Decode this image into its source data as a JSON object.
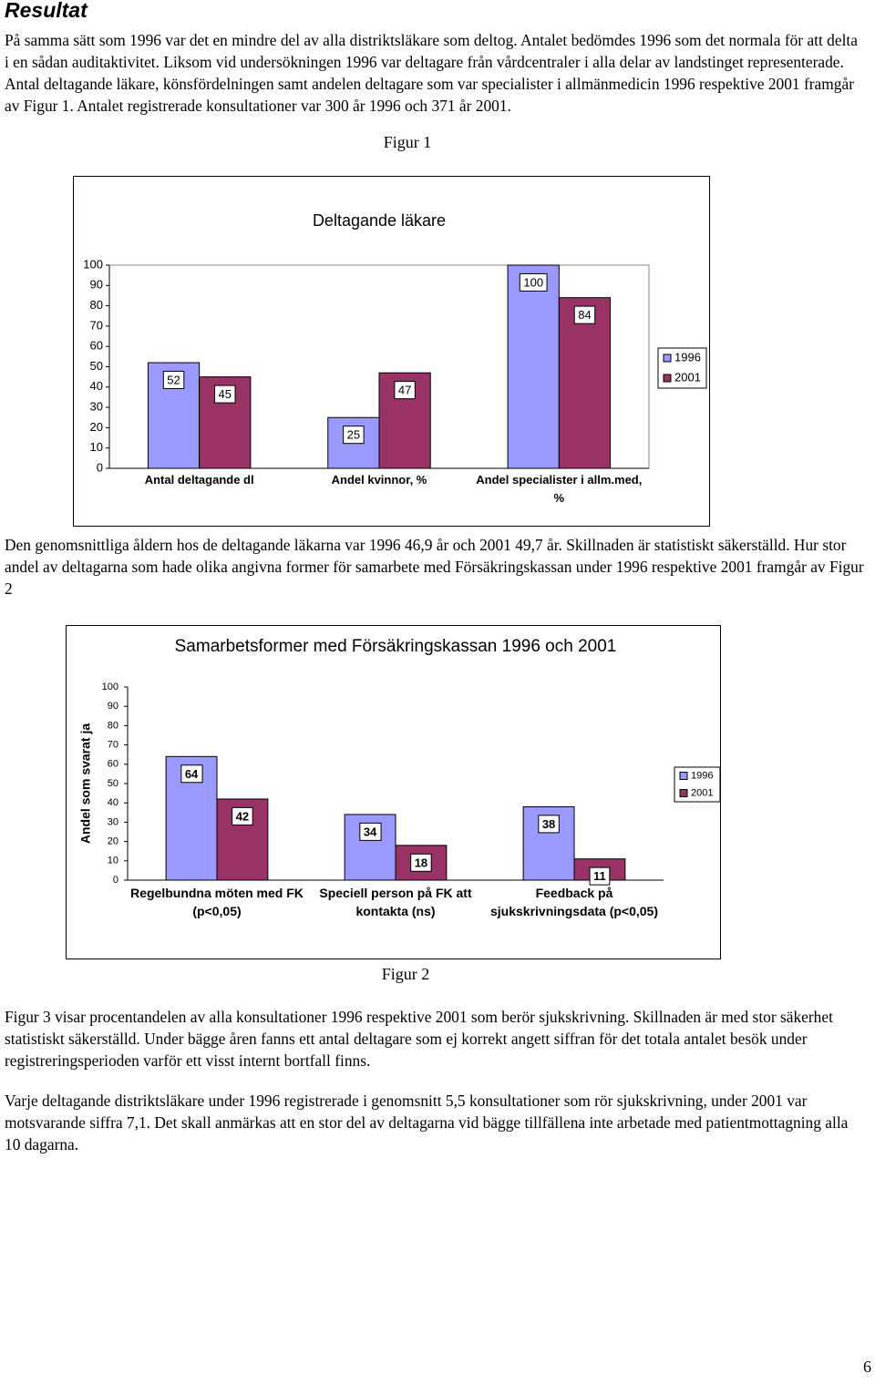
{
  "heading": "Resultat",
  "paragraphs": [
    "På samma sätt som 1996 var det en mindre del av alla distriktsläkare som deltog. Antalet bedömdes 1996 som det normala för att delta i en sådan auditaktivitet. Liksom vid undersökningen 1996 var deltagare från vårdcentraler i alla delar av landstinget representerade. Antal deltagande läkare, könsfördelningen samt andelen deltagare som var specialister i allmänmedicin 1996 respektive 2001 framgår av Figur 1. Antalet registrerade konsultationer var 300 år 1996 och 371 år 2001.",
    "Den genomsnittliga åldern hos de deltagande läkarna var 1996 46,9 år och 2001 49,7 år. Skillnaden är statistiskt säkerställd. Hur stor andel av deltagarna som hade olika angivna former för samarbete med Försäkringskassan under 1996 respektive 2001 framgår av Figur 2",
    "Figur 3 visar procentandelen av alla konsultationer 1996 respektive 2001 som berör sjukskrivning. Skillnaden är med stor säkerhet statistiskt säkerställd. Under bägge åren fanns ett antal deltagare som ej korrekt angett siffran för det totala antalet besök under registreringsperioden varför ett visst internt bortfall finns.",
    "Varje deltagande distriktsläkare under 1996 registrerade i genomsnitt 5,5 konsultationer som rör sjukskrivning, under 2001 var motsvarande siffra 7,1. Det skall anmärkas att en stor del av deltagarna vid bägge tillfällena inte arbetade med patientmottagning alla 10 dagarna."
  ],
  "captions": [
    "Figur 1",
    "Figur 2"
  ],
  "page_number": "6",
  "chart_data": [
    {
      "type": "bar",
      "title": "Deltagande läkare",
      "categories": [
        "Antal deltagande dl",
        "Andel kvinnor, %",
        "Andel specialister i allm.med, %"
      ],
      "series": [
        {
          "name": "1996",
          "color": "#9999ff",
          "values": [
            52,
            25,
            100
          ]
        },
        {
          "name": "2001",
          "color": "#993366",
          "values": [
            45,
            47,
            84
          ]
        }
      ],
      "ylim": [
        0,
        100
      ],
      "yticks": [
        0,
        10,
        20,
        30,
        40,
        50,
        60,
        70,
        80,
        90,
        100
      ],
      "legend": "right"
    },
    {
      "type": "bar",
      "title": "Samarbetsformer med Försäkringskassan 1996 och 2001",
      "ylabel": "Andel som svarat ja",
      "categories": [
        "Regelbundna möten med FK (p<0,05)",
        "Speciell person på FK att kontakta (ns)",
        "Feedback på sjukskrivningsdata (p<0,05)"
      ],
      "series": [
        {
          "name": "1996",
          "color": "#9999ff",
          "values": [
            64,
            34,
            38
          ]
        },
        {
          "name": "2001",
          "color": "#993366",
          "values": [
            42,
            18,
            11
          ]
        }
      ],
      "ylim": [
        0,
        100
      ],
      "yticks": [
        0,
        10,
        20,
        30,
        40,
        50,
        60,
        70,
        80,
        90,
        100
      ],
      "legend": "right"
    }
  ]
}
